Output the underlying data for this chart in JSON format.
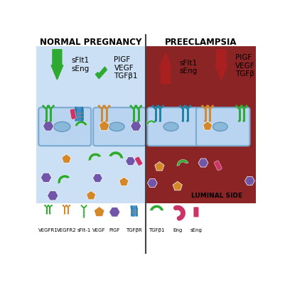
{
  "title_left": "NORMAL PREGNANCY",
  "title_right": "PREECLAMPSIA",
  "bg_color": "#ffffff",
  "left_section_bg": "#cce0f5",
  "right_section_bg": "#8b2525",
  "cell_fill": "#b8d4f0",
  "cell_edge": "#7aaad0",
  "nucleus_fill": "#8ab8d8",
  "nucleus_edge": "#6898c0",
  "green": "#2eaa30",
  "orange": "#d4882a",
  "purple": "#7055a8",
  "pink": "#cc3366",
  "teal": "#2080a0",
  "red_dark": "#aa2020",
  "luminal_side": "LUMINAL SIDE"
}
